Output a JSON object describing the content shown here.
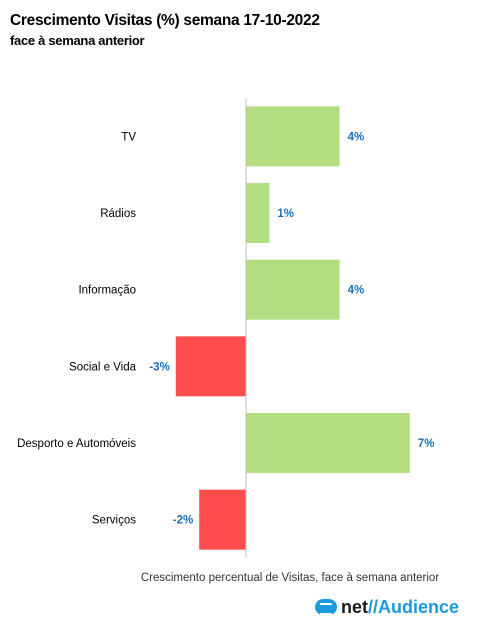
{
  "title": "Crescimento Visitas (%) semana 17-10-2022",
  "subtitle": "face à semana anterior",
  "footer": {
    "logo_net": "net",
    "logo_sep": "//",
    "logo_audience": "Audience",
    "logo_icon": "netaudience-logo-icon"
  },
  "colors": {
    "positive": "#b3de80",
    "negative": "#ff4d4d",
    "label": "#1a6fb5",
    "axis": "#bfbfbf"
  },
  "chart_data": {
    "type": "bar",
    "orientation": "horizontal",
    "categories": [
      "TV",
      "Rádios",
      "Informação",
      "Social e Vida",
      "Desporto e Automóveis",
      "Serviços"
    ],
    "values": [
      4,
      1,
      4,
      -3,
      7,
      -2
    ],
    "value_labels": [
      "4%",
      "1%",
      "4%",
      "-3%",
      "7%",
      "-2%"
    ],
    "xlabel": "Crescimento percentual de Visitas, face à semana anterior",
    "xlim": [
      -3.2,
      7.2
    ],
    "grid": false,
    "legend": "none"
  }
}
